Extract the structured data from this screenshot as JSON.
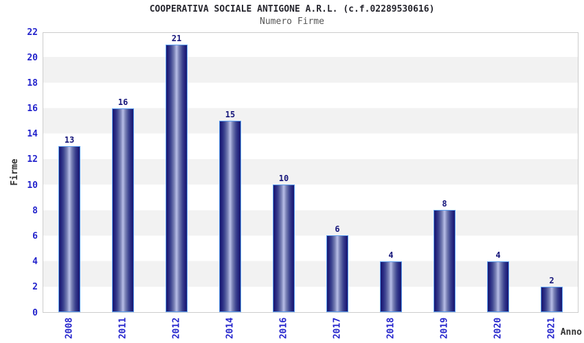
{
  "chart_data": {
    "type": "bar",
    "title": "COOPERATIVA SOCIALE ANTIGONE A.R.L. (c.f.02289530616)",
    "subtitle": "Numero Firme",
    "xlabel": "Anno",
    "ylabel": "Firme",
    "categories": [
      "2008",
      "2011",
      "2012",
      "2014",
      "2016",
      "2017",
      "2018",
      "2019",
      "2020",
      "2021"
    ],
    "values": [
      13,
      16,
      21,
      15,
      10,
      6,
      4,
      8,
      4,
      2
    ],
    "ylim": [
      0,
      22
    ],
    "yticks": [
      0,
      2,
      4,
      6,
      8,
      10,
      12,
      14,
      16,
      18,
      20,
      22
    ],
    "grid": "alternating horizontal bands every 2 units",
    "legend": "none",
    "bar_labels_shown": true,
    "colors": {
      "bar_edge_dark": "#191970",
      "bar_center_light": "#b8bee7",
      "bar_outline": "#5b9ef0",
      "tick_label": "#2323cc",
      "value_label": "#15157a",
      "band_gray": "#f2f2f2",
      "band_white": "#ffffff",
      "plot_border": "#cccccc",
      "title_text": "#26262e",
      "subtitle_text": "#555555",
      "axis_title_text": "#333333"
    }
  }
}
